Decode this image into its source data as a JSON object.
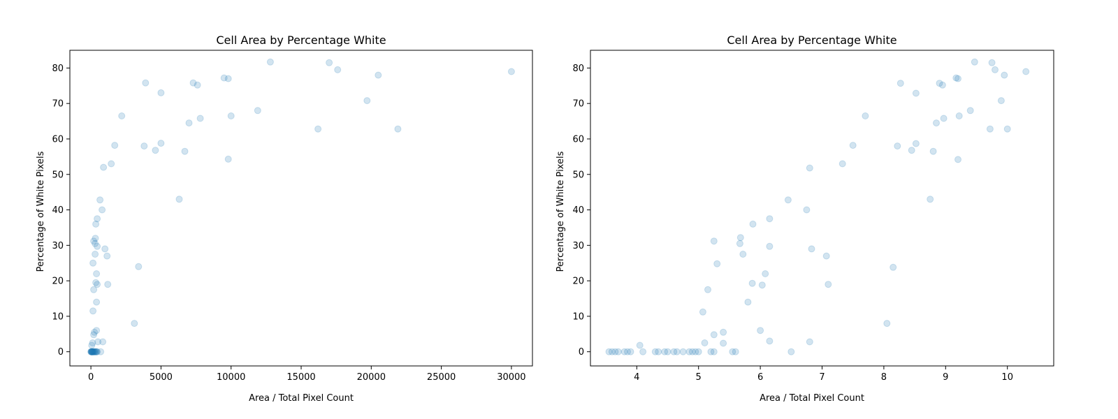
{
  "colors": {
    "point": "#1f77b4"
  },
  "chart_data": [
    {
      "type": "scatter",
      "title": "Cell Area by Percentage White",
      "xlabel": "Area / Total Pixel Count",
      "ylabel": "Percentage of White Pixels",
      "xlim": [
        -1500,
        31500
      ],
      "ylim": [
        -4,
        85
      ],
      "xticks": [
        0,
        5000,
        10000,
        15000,
        20000,
        25000,
        30000
      ],
      "yticks": [
        0,
        10,
        20,
        30,
        40,
        50,
        60,
        70,
        80
      ],
      "point_alpha": 0.2,
      "grid": false,
      "points": [
        [
          0,
          0
        ],
        [
          20,
          0
        ],
        [
          35,
          0
        ],
        [
          50,
          0
        ],
        [
          60,
          0
        ],
        [
          75,
          0
        ],
        [
          90,
          0
        ],
        [
          110,
          0
        ],
        [
          130,
          0
        ],
        [
          150,
          0
        ],
        [
          170,
          0
        ],
        [
          200,
          0
        ],
        [
          230,
          0
        ],
        [
          260,
          0
        ],
        [
          300,
          0
        ],
        [
          330,
          0
        ],
        [
          380,
          0
        ],
        [
          420,
          0
        ],
        [
          450,
          0
        ],
        [
          700,
          0
        ],
        [
          60,
          1.8
        ],
        [
          120,
          2.5
        ],
        [
          500,
          2.8
        ],
        [
          850,
          2.8
        ],
        [
          200,
          4.8
        ],
        [
          250,
          5.5
        ],
        [
          400,
          6
        ],
        [
          3100,
          8
        ],
        [
          150,
          11.5
        ],
        [
          400,
          14
        ],
        [
          200,
          17.5
        ],
        [
          350,
          19.5
        ],
        [
          450,
          19
        ],
        [
          1200,
          19
        ],
        [
          400,
          22
        ],
        [
          3400,
          24
        ],
        [
          150,
          25
        ],
        [
          1000,
          29
        ],
        [
          300,
          27.5
        ],
        [
          1150,
          27
        ],
        [
          450,
          29.7
        ],
        [
          200,
          31.2
        ],
        [
          300,
          30.5
        ],
        [
          320,
          32
        ],
        [
          350,
          36
        ],
        [
          450,
          37.5
        ],
        [
          800,
          40
        ],
        [
          650,
          42.8
        ],
        [
          900,
          52
        ],
        [
          1450,
          53
        ],
        [
          1700,
          58.2
        ],
        [
          2200,
          66.5
        ],
        [
          3800,
          58
        ],
        [
          3900,
          75.8
        ],
        [
          4600,
          56.8
        ],
        [
          5000,
          58.8
        ],
        [
          5000,
          73
        ],
        [
          6300,
          43
        ],
        [
          6700,
          56.5
        ],
        [
          7000,
          64.5
        ],
        [
          7300,
          75.8
        ],
        [
          7600,
          75.2
        ],
        [
          7800,
          65.8
        ],
        [
          9500,
          77.2
        ],
        [
          9800,
          77
        ],
        [
          9800,
          54.3
        ],
        [
          10000,
          66.5
        ],
        [
          11900,
          68
        ],
        [
          12800,
          81.7
        ],
        [
          16200,
          62.8
        ],
        [
          17000,
          81.5
        ],
        [
          17600,
          79.5
        ],
        [
          19700,
          70.8
        ],
        [
          20500,
          78
        ],
        [
          21900,
          62.8
        ],
        [
          30000,
          79
        ]
      ]
    },
    {
      "type": "scatter",
      "title": "Cell Area by Percentage White",
      "xlabel": "Area / Total Pixel Count",
      "ylabel": "Percentage of White Pixels",
      "xlim": [
        3.25,
        10.75
      ],
      "ylim": [
        -4,
        85
      ],
      "xticks": [
        4,
        5,
        6,
        7,
        8,
        9,
        10
      ],
      "yticks": [
        0,
        10,
        20,
        30,
        40,
        50,
        60,
        70,
        80
      ],
      "point_alpha": 0.2,
      "grid": false,
      "points": [
        [
          3.55,
          0
        ],
        [
          3.6,
          0
        ],
        [
          3.65,
          0
        ],
        [
          3.7,
          0
        ],
        [
          3.8,
          0
        ],
        [
          3.85,
          0
        ],
        [
          3.9,
          0
        ],
        [
          4.1,
          0
        ],
        [
          4.3,
          0
        ],
        [
          4.35,
          0
        ],
        [
          4.45,
          0
        ],
        [
          4.5,
          0
        ],
        [
          4.6,
          0
        ],
        [
          4.65,
          0
        ],
        [
          4.75,
          0
        ],
        [
          4.85,
          0
        ],
        [
          4.9,
          0
        ],
        [
          4.95,
          0
        ],
        [
          5.0,
          0
        ],
        [
          5.2,
          0
        ],
        [
          5.25,
          0
        ],
        [
          5.55,
          0
        ],
        [
          5.6,
          0
        ],
        [
          6.5,
          0
        ],
        [
          4.05,
          1.8
        ],
        [
          5.1,
          2.5
        ],
        [
          5.4,
          2.4
        ],
        [
          6.15,
          3
        ],
        [
          6.8,
          2.8
        ],
        [
          5.25,
          4.8
        ],
        [
          5.4,
          5.5
        ],
        [
          6.0,
          6
        ],
        [
          8.05,
          8
        ],
        [
          5.07,
          11.2
        ],
        [
          5.15,
          17.5
        ],
        [
          5.8,
          14
        ],
        [
          5.87,
          19.3
        ],
        [
          6.03,
          18.8
        ],
        [
          7.1,
          19
        ],
        [
          5.3,
          24.8
        ],
        [
          6.08,
          22
        ],
        [
          8.15,
          23.8
        ],
        [
          5.25,
          31.2
        ],
        [
          5.67,
          30.5
        ],
        [
          5.68,
          32.2
        ],
        [
          5.72,
          27.5
        ],
        [
          6.15,
          29.7
        ],
        [
          6.83,
          29
        ],
        [
          7.07,
          27
        ],
        [
          5.88,
          36
        ],
        [
          6.15,
          37.5
        ],
        [
          6.75,
          40
        ],
        [
          6.45,
          42.8
        ],
        [
          6.8,
          51.8
        ],
        [
          7.33,
          53
        ],
        [
          7.5,
          58.2
        ],
        [
          7.7,
          66.5
        ],
        [
          8.22,
          58
        ],
        [
          8.27,
          75.7
        ],
        [
          8.45,
          56.8
        ],
        [
          8.52,
          58.7
        ],
        [
          8.52,
          72.9
        ],
        [
          8.75,
          43
        ],
        [
          8.8,
          56.5
        ],
        [
          8.85,
          64.5
        ],
        [
          8.9,
          75.7
        ],
        [
          8.95,
          75.2
        ],
        [
          8.97,
          65.8
        ],
        [
          9.17,
          77.2
        ],
        [
          9.2,
          77
        ],
        [
          9.2,
          54.2
        ],
        [
          9.22,
          66.5
        ],
        [
          9.4,
          68
        ],
        [
          9.47,
          81.7
        ],
        [
          9.72,
          62.8
        ],
        [
          9.75,
          81.5
        ],
        [
          9.8,
          79.5
        ],
        [
          9.9,
          70.8
        ],
        [
          9.95,
          78
        ],
        [
          10.0,
          62.8
        ],
        [
          10.3,
          79
        ]
      ]
    }
  ]
}
